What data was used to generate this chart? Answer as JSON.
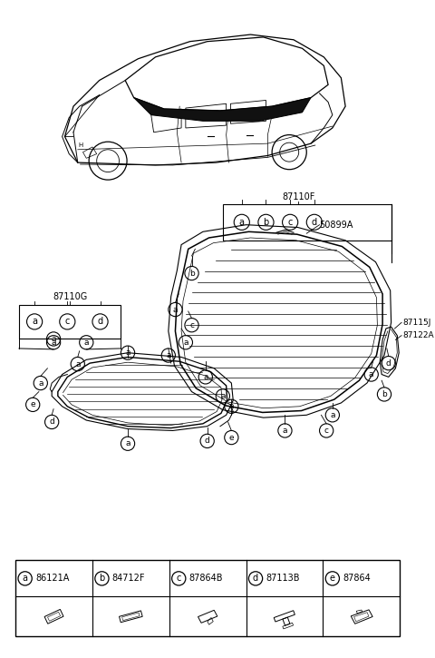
{
  "background_color": "#ffffff",
  "legend_items": [
    {
      "letter": "a",
      "code": "86121A"
    },
    {
      "letter": "b",
      "code": "84712F"
    },
    {
      "letter": "c",
      "code": "87864B"
    },
    {
      "letter": "d",
      "code": "87113B"
    },
    {
      "letter": "e",
      "code": "87864"
    }
  ],
  "part_labels": [
    "87110F",
    "50899A",
    "87115J",
    "87122A",
    "87110G"
  ]
}
